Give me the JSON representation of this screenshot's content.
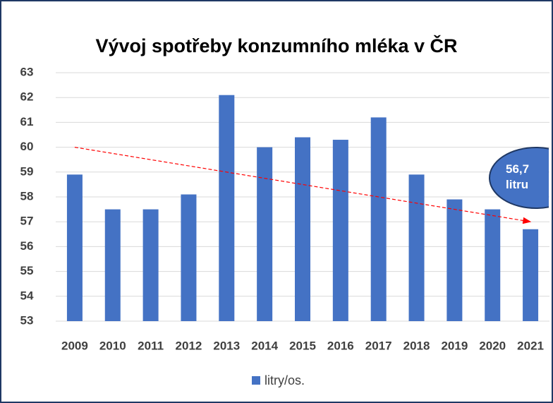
{
  "chart_data": {
    "type": "bar",
    "title": "Vývoj spotřeby konzumního mléka v ČR",
    "categories": [
      "2009",
      "2010",
      "2011",
      "2012",
      "2013",
      "2014",
      "2015",
      "2016",
      "2017",
      "2018",
      "2019",
      "2020",
      "2021"
    ],
    "series": [
      {
        "name": "litry/os.",
        "color": "#4472c4",
        "values": [
          58.9,
          57.5,
          57.5,
          58.1,
          62.1,
          60.0,
          60.4,
          60.3,
          61.2,
          58.9,
          57.9,
          57.5,
          56.7
        ]
      }
    ],
    "ylim": [
      53,
      63
    ],
    "yticks": [
      53,
      54,
      55,
      56,
      57,
      58,
      59,
      60,
      61,
      62,
      63
    ],
    "grid": true,
    "trend": [
      60.0,
      57.0
    ],
    "trend_color": "#ff0000",
    "annotation": "56,7 litru"
  }
}
